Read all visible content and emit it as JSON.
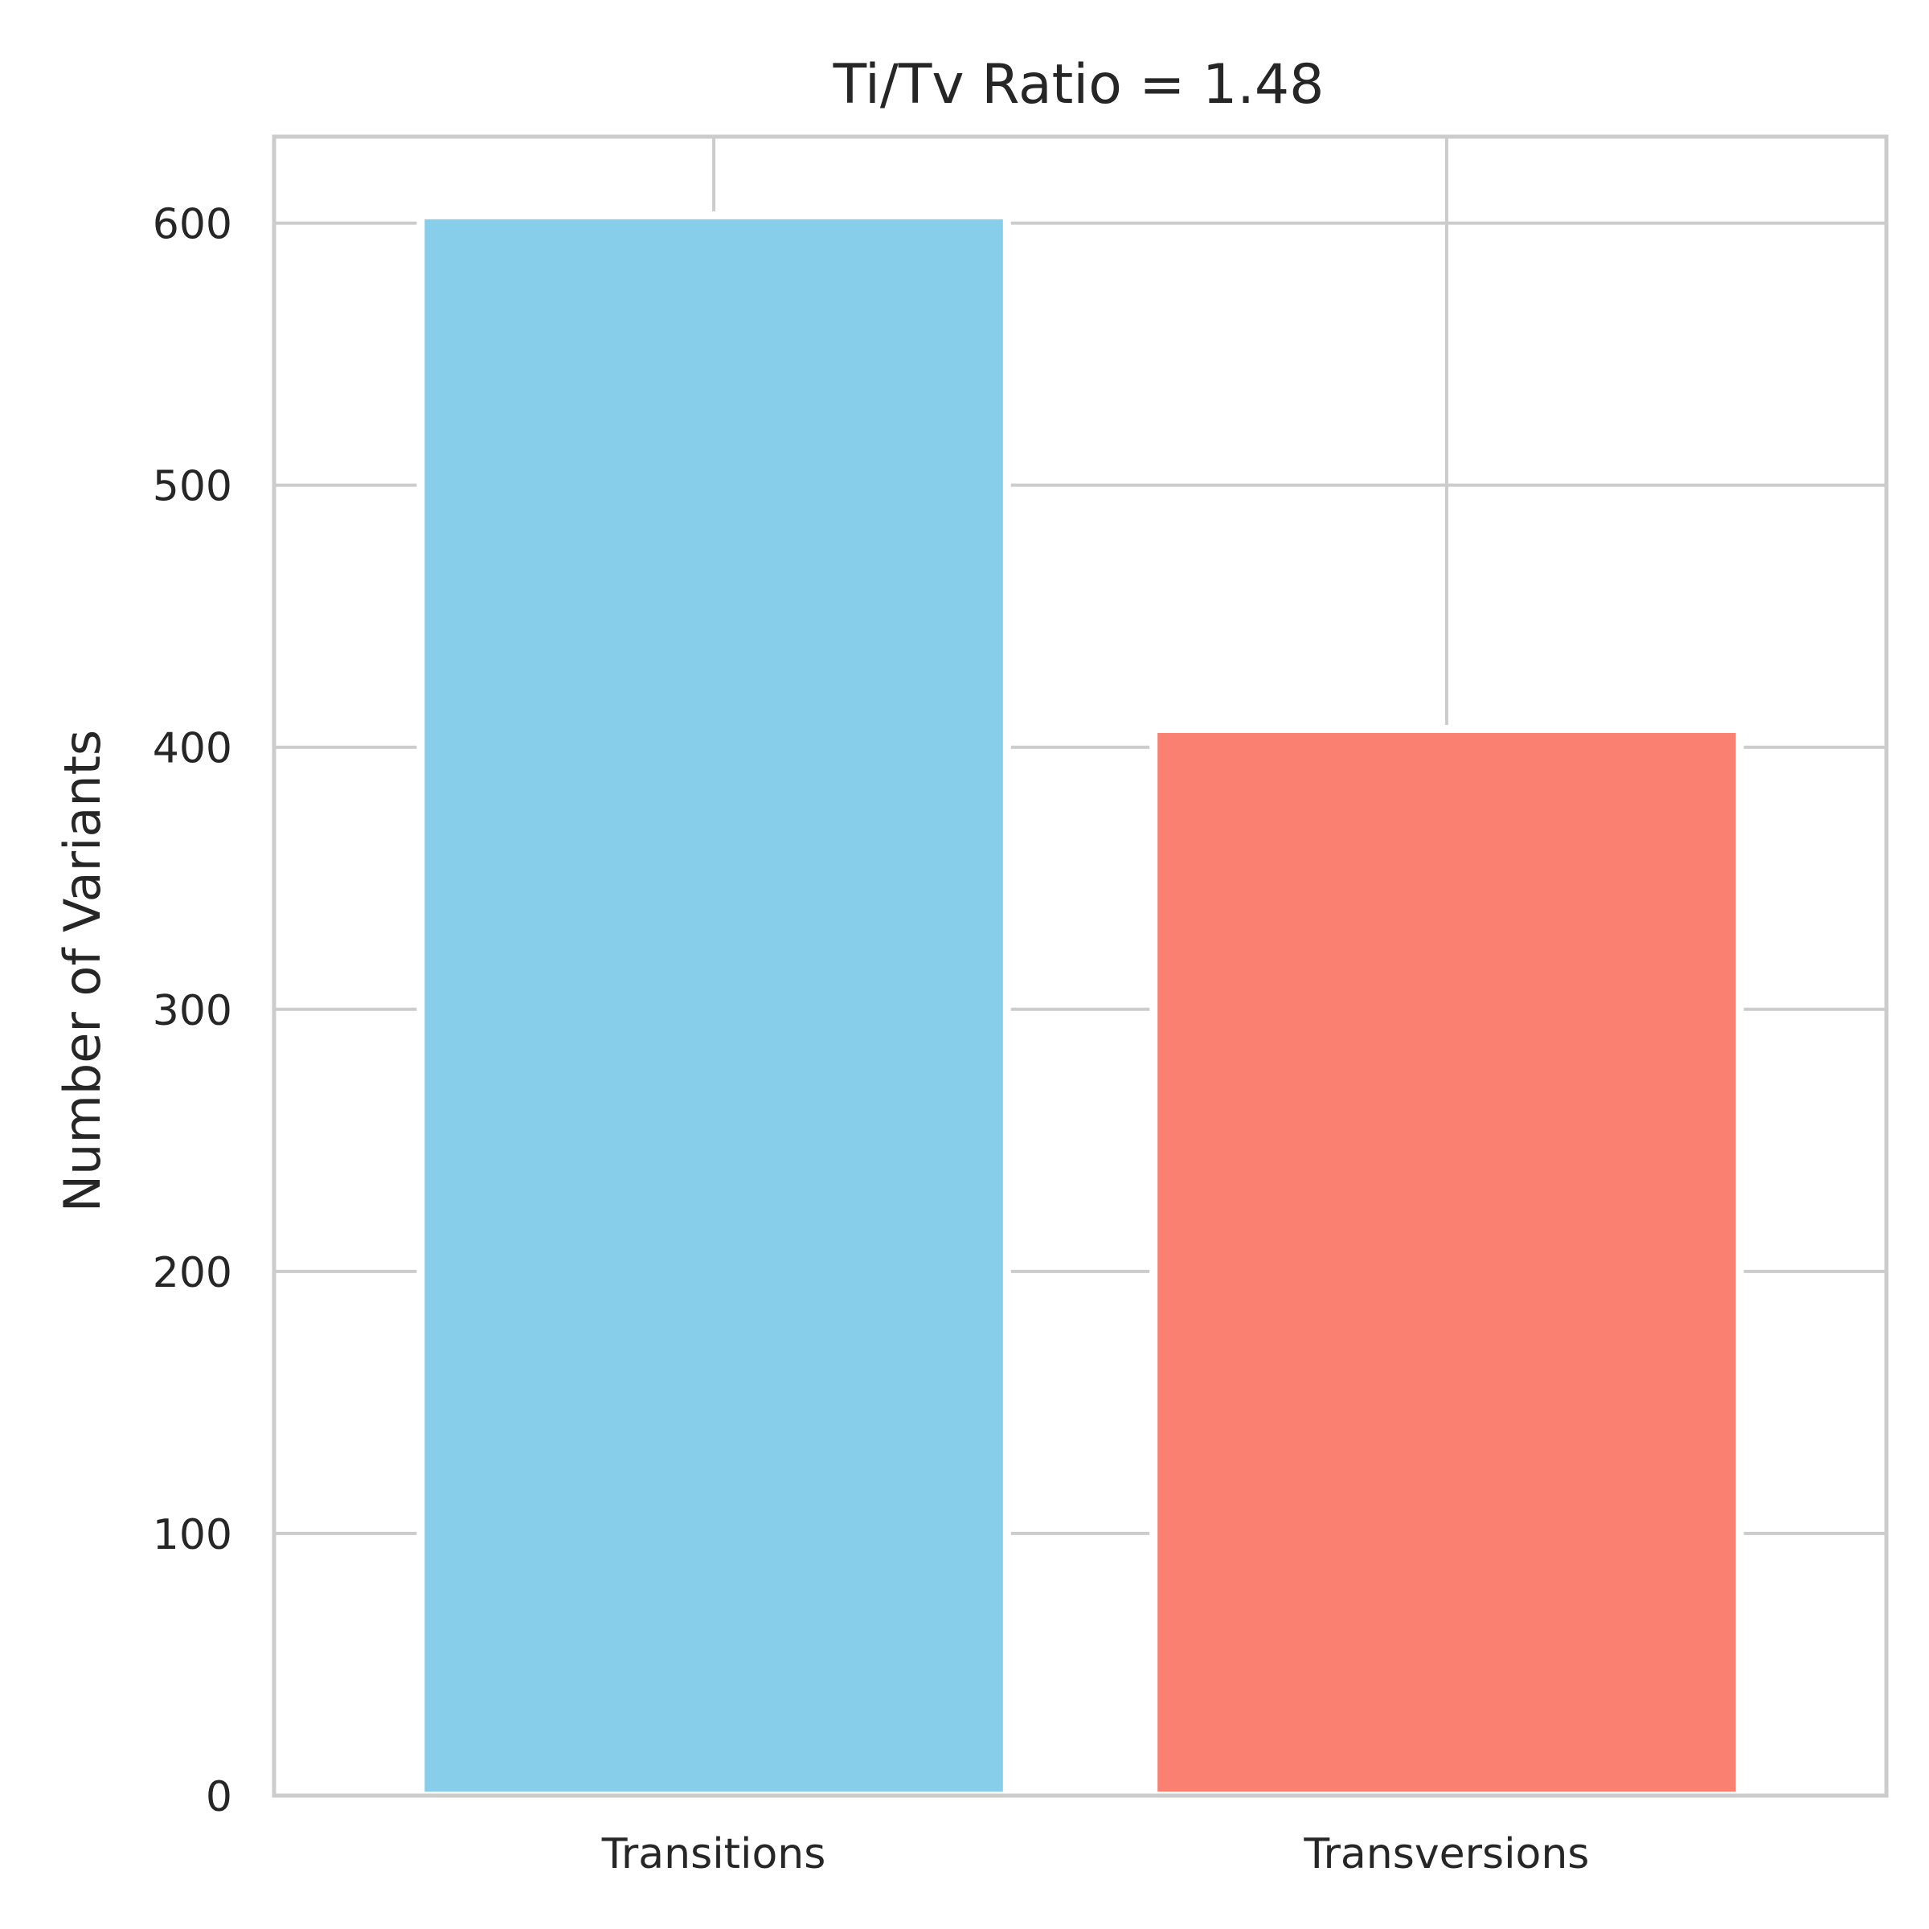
{
  "chart_data": {
    "type": "bar",
    "title": "Ti/Tv Ratio = 1.48",
    "xlabel": "",
    "ylabel": "Number of Variants",
    "categories": [
      "Transitions",
      "Transversions"
    ],
    "values": [
      603,
      407
    ],
    "ylim": [
      0,
      633
    ],
    "yticks": [
      0,
      100,
      200,
      300,
      400,
      500,
      600
    ],
    "colors": [
      "#87CEEB",
      "#FA8072"
    ],
    "grid": true,
    "legend": "none"
  },
  "style": {
    "background": "#ffffff",
    "grid_color": "#cccccc",
    "spine_color": "#cccccc",
    "text_color": "#262626"
  }
}
